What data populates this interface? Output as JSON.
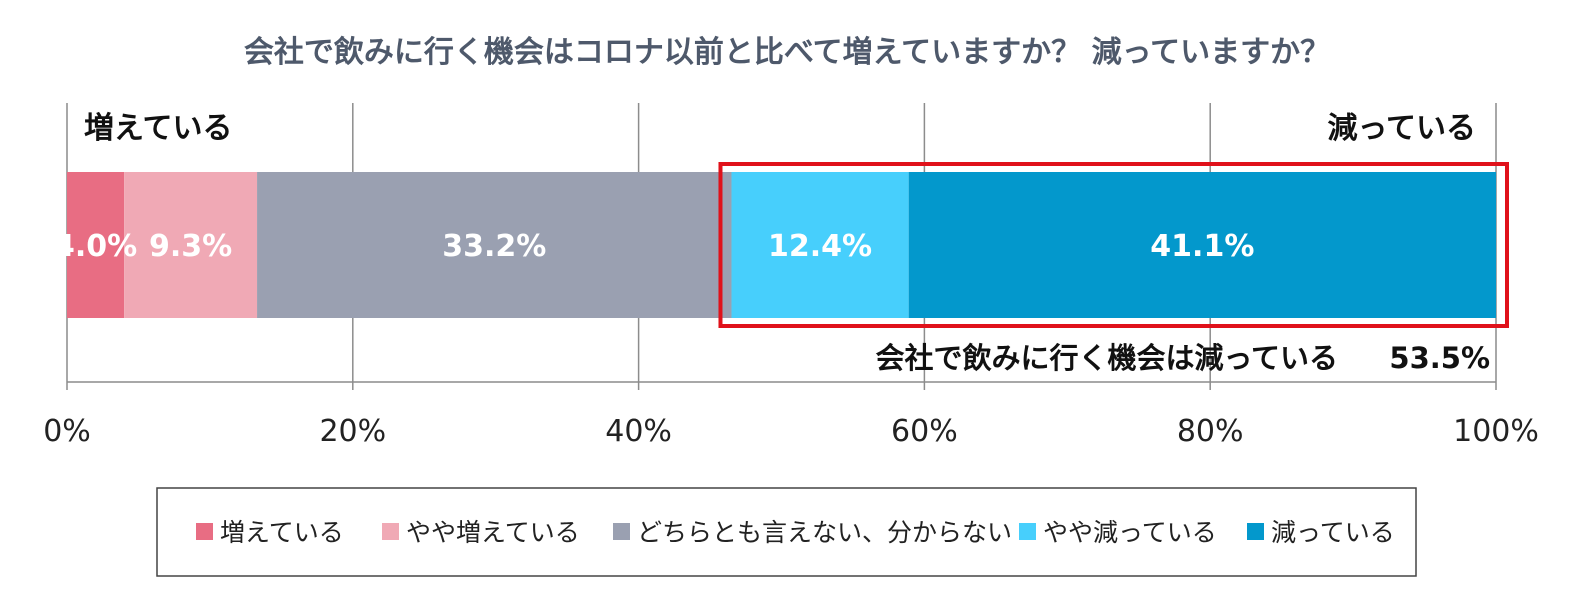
{
  "chart_data": {
    "type": "bar",
    "orientation": "horizontal",
    "stacked": true,
    "title": "会社で飲みに行く機会はコロナ以前と比べて増えていますか？ 減っていますか？",
    "categories": [
      ""
    ],
    "series": [
      {
        "name": "増えている",
        "values": [
          4.0
        ],
        "color": "#e86d83",
        "label": "4.0%"
      },
      {
        "name": "やや増えている",
        "values": [
          9.3
        ],
        "color": "#f0a9b5",
        "label": "9.3%"
      },
      {
        "name": "どちらとも言えない、分からない",
        "values": [
          33.2
        ],
        "color": "#9aa0b1",
        "label": "33.2%"
      },
      {
        "name": "やや減っている",
        "values": [
          12.4
        ],
        "color": "#47cffc",
        "label": "12.4%"
      },
      {
        "name": "減っている",
        "values": [
          41.1
        ],
        "color": "#0398cc",
        "label": "41.1%"
      }
    ],
    "xlim": [
      0,
      100
    ],
    "x_ticks": [
      "0%",
      "20%",
      "40%",
      "60%",
      "80%",
      "100%"
    ],
    "grid": true,
    "legend_position": "bottom",
    "annotations": {
      "left_label": "増えている",
      "right_label": "減っている",
      "highlight_text": "会社で飲みに行く機会は減っている",
      "highlight_value": "53.5%",
      "highlight_color": "#e0111a"
    }
  }
}
